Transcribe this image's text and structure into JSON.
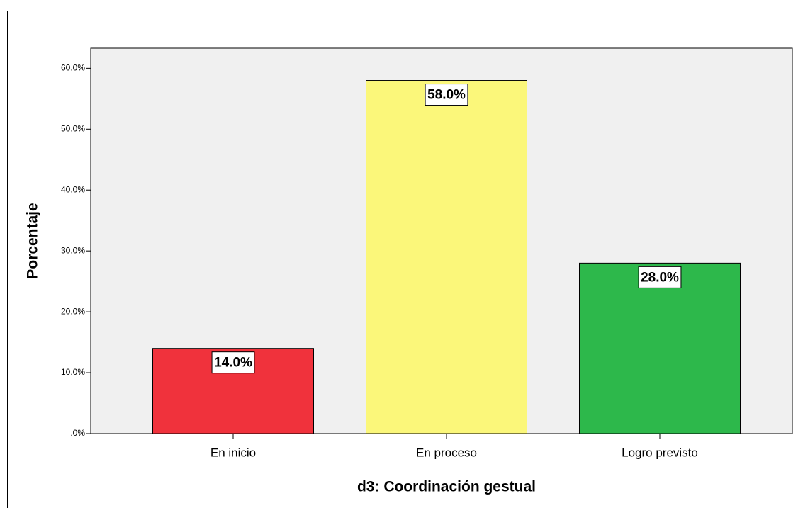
{
  "chart_data": {
    "type": "bar",
    "x_label": "d3: Coordinación gestual",
    "y_label": "Porcentaje",
    "categories": [
      "En inicio",
      "En proceso",
      "Logro previsto"
    ],
    "values": [
      14,
      58,
      28
    ],
    "value_labels": [
      "14.0%",
      "58.0%",
      "28.0%"
    ],
    "colors": [
      "#f0323c",
      "#fbf77a",
      "#2db84b"
    ],
    "ylim": [
      0,
      63.3
    ],
    "yticks": [
      {
        "value": 0,
        "label": ".0%"
      },
      {
        "value": 10,
        "label": "10.0%"
      },
      {
        "value": 20,
        "label": "20.0%"
      },
      {
        "value": 30,
        "label": "30.0%"
      },
      {
        "value": 40,
        "label": "40.0%"
      },
      {
        "value": 50,
        "label": "50.0%"
      },
      {
        "value": 60,
        "label": "60.0%"
      }
    ],
    "grid": false
  }
}
